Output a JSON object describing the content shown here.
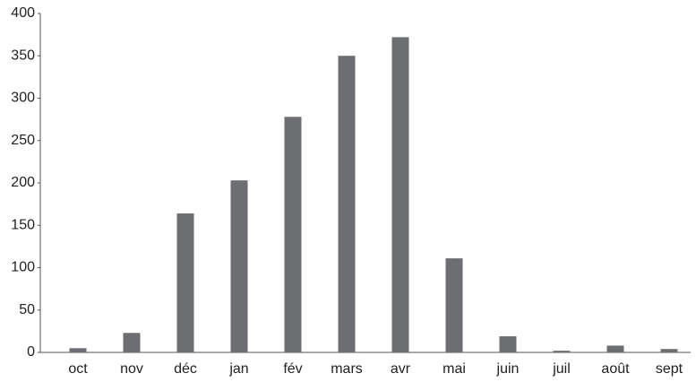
{
  "chart_data": {
    "type": "bar",
    "categories": [
      "oct",
      "nov",
      "déc",
      "jan",
      "fév",
      "mars",
      "avr",
      "mai",
      "juin",
      "juil",
      "août",
      "sept"
    ],
    "values": [
      5,
      23,
      164,
      203,
      278,
      350,
      372,
      111,
      19,
      2,
      8,
      4
    ],
    "color": "#6d6e71",
    "ylim": [
      0,
      400
    ],
    "yticks": [
      0,
      50,
      100,
      150,
      200,
      250,
      300,
      350,
      400
    ],
    "grid": false
  }
}
